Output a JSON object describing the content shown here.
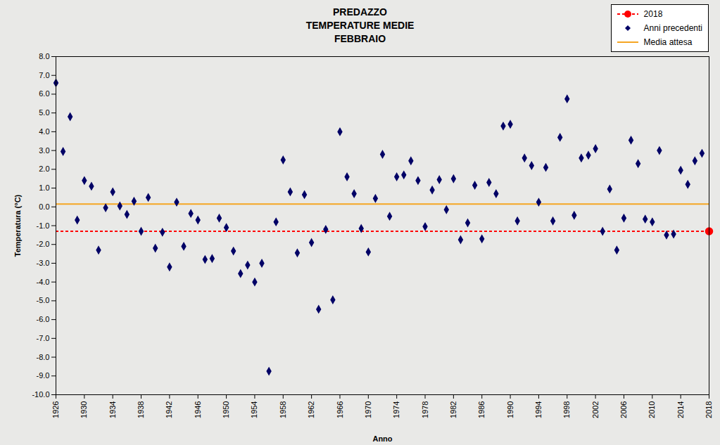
{
  "chart_data": {
    "type": "scatter",
    "title": [
      "PREDAZZO",
      "TEMPERATURE MEDIE",
      "FEBBRAIO"
    ],
    "x_label": "Anno",
    "y_label": "Temperatura (°C)",
    "xlim": [
      1926,
      2018
    ],
    "xticks": [
      1926,
      1930,
      1934,
      1938,
      1942,
      1946,
      1950,
      1954,
      1958,
      1962,
      1966,
      1970,
      1974,
      1978,
      1982,
      1986,
      1990,
      1994,
      1998,
      2002,
      2006,
      2010,
      2014,
      2018
    ],
    "ylim": [
      -10,
      8
    ],
    "yticks": [
      {
        "value": -10,
        "label": "-10.0"
      },
      {
        "value": -9,
        "label": "-9.0"
      },
      {
        "value": -8,
        "label": "-8.0"
      },
      {
        "value": -7,
        "label": "-7.0"
      },
      {
        "value": -6,
        "label": "-6.0"
      },
      {
        "value": -5,
        "label": "-5.0"
      },
      {
        "value": -4,
        "label": "-4.0"
      },
      {
        "value": -3,
        "label": "-3.0"
      },
      {
        "value": -2,
        "label": "-2.0"
      },
      {
        "value": -1,
        "label": "-1.0"
      },
      {
        "value": 0,
        "label": "0.0"
      },
      {
        "value": 1,
        "label": "1.0"
      },
      {
        "value": 2,
        "label": "2.0"
      },
      {
        "value": 3,
        "label": "3.0"
      },
      {
        "value": 4,
        "label": "4.0"
      },
      {
        "value": 5,
        "label": "5.0"
      },
      {
        "value": 6,
        "label": "6.0"
      },
      {
        "value": 7,
        "label": "7.0"
      },
      {
        "value": 8,
        "label": "8.0"
      }
    ],
    "grid": false,
    "legend": "top-right",
    "series": [
      {
        "name": "2018",
        "color": "#ff0000",
        "marker": "circle",
        "line_style": "dashed",
        "x": [
          2018
        ],
        "values": [
          -1.3
        ]
      },
      {
        "name": "Anni precedenti",
        "color": "#000066",
        "marker": "diamond",
        "x": [
          1926,
          1927,
          1928,
          1929,
          1930,
          1931,
          1932,
          1933,
          1934,
          1935,
          1936,
          1937,
          1938,
          1939,
          1940,
          1941,
          1942,
          1943,
          1944,
          1945,
          1946,
          1947,
          1948,
          1949,
          1950,
          1951,
          1952,
          1953,
          1954,
          1955,
          1956,
          1957,
          1958,
          1959,
          1960,
          1961,
          1962,
          1963,
          1964,
          1965,
          1966,
          1967,
          1968,
          1969,
          1970,
          1971,
          1972,
          1973,
          1974,
          1975,
          1976,
          1977,
          1978,
          1979,
          1980,
          1981,
          1982,
          1983,
          1984,
          1985,
          1986,
          1987,
          1988,
          1989,
          1990,
          1991,
          1992,
          1993,
          1994,
          1995,
          1996,
          1997,
          1998,
          1999,
          2000,
          2001,
          2002,
          2003,
          2004,
          2005,
          2006,
          2007,
          2008,
          2009,
          2010,
          2011,
          2012,
          2013,
          2014,
          2015,
          2016,
          2017
        ],
        "values": [
          6.6,
          2.95,
          4.8,
          -0.7,
          1.4,
          1.1,
          -2.3,
          -0.05,
          0.8,
          0.05,
          -0.4,
          0.3,
          -1.3,
          0.5,
          -2.2,
          -1.35,
          -3.2,
          0.25,
          -2.1,
          -0.35,
          -0.7,
          -2.8,
          -2.75,
          -0.6,
          -1.1,
          -2.35,
          -3.55,
          -3.1,
          -4.0,
          -3.0,
          -8.75,
          -0.8,
          2.5,
          0.8,
          -2.45,
          0.65,
          -1.9,
          -5.45,
          -1.2,
          -4.95,
          4.0,
          1.6,
          0.7,
          -1.15,
          -2.4,
          0.45,
          2.8,
          -0.5,
          1.6,
          1.7,
          2.45,
          1.4,
          -1.05,
          0.9,
          1.45,
          -0.15,
          1.5,
          -1.75,
          -0.85,
          1.15,
          -1.7,
          1.3,
          0.7,
          4.3,
          4.4,
          -0.75,
          2.6,
          2.2,
          0.25,
          2.1,
          -0.75,
          3.7,
          5.75,
          -0.45,
          2.6,
          2.75,
          3.1,
          -1.3,
          0.95,
          -2.3,
          -0.6,
          3.55,
          2.3,
          -0.65,
          -0.8,
          3.0,
          -1.5,
          -1.45,
          1.95,
          1.2,
          2.45,
          2.85
        ]
      },
      {
        "name": "Media attesa",
        "type": "hline",
        "color": "#f5a623",
        "line_style": "solid",
        "values": [
          0.15
        ]
      }
    ]
  }
}
